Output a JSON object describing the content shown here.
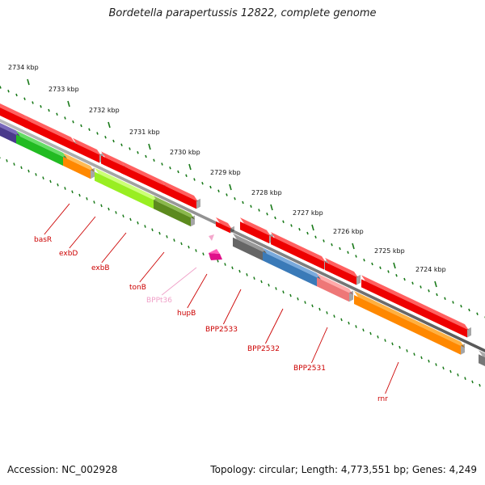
{
  "title": "Bordetella parapertussis 12822, complete genome",
  "footer": {
    "accession": "Accession: NC_002928",
    "stats": "Topology: circular; Length: 4,773,551 bp; Genes: 4,249"
  },
  "ruler": {
    "labels": [
      "2734 kbp",
      "2733 kbp",
      "2732 kbp",
      "2731 kbp",
      "2730 kbp",
      "2729 kbp",
      "2728 kbp",
      "2727 kbp",
      "2726 kbp",
      "2725 kbp",
      "2724 kbp"
    ]
  },
  "genes": [
    {
      "name": "basR",
      "color": "#cc0000"
    },
    {
      "name": "exbD",
      "color": "#cc0000"
    },
    {
      "name": "exbB",
      "color": "#cc0000"
    },
    {
      "name": "tonB",
      "color": "#cc0000"
    },
    {
      "name": "BPPt36",
      "color": "#f0a0c8"
    },
    {
      "name": "hupB",
      "color": "#cc0000"
    },
    {
      "name": "BPP2533",
      "color": "#cc0000"
    },
    {
      "name": "BPP2532",
      "color": "#cc0000"
    },
    {
      "name": "BPP2531",
      "color": "#cc0000"
    },
    {
      "name": "rnr",
      "color": "#cc0000"
    }
  ],
  "colors": {
    "cds": "#ee0000",
    "backbone": "#8a8a8a",
    "ruler_ticks": "#1a7a1a",
    "row_ticks": "#1a7a1a"
  }
}
